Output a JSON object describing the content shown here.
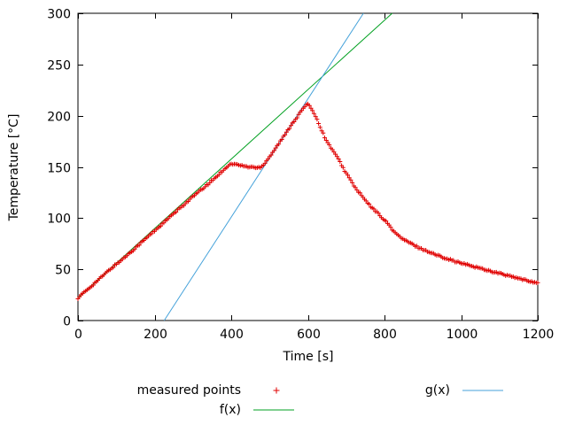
{
  "chart_data": {
    "type": "scatter",
    "title": "",
    "xlabel": "Time [s]",
    "ylabel": "Temperature [°C]",
    "xlim": [
      0,
      1200
    ],
    "ylim": [
      0,
      300
    ],
    "xticks": [
      0,
      200,
      400,
      600,
      800,
      1000,
      1200
    ],
    "yticks": [
      0,
      50,
      100,
      150,
      200,
      250,
      300
    ],
    "grid": false,
    "series": [
      {
        "name": "measured points",
        "type": "points",
        "marker": "plus",
        "color": "#e00000",
        "sample_interval_s": 4,
        "jitter_c": 0.8,
        "keyframes": [
          [
            0,
            22
          ],
          [
            30,
            32
          ],
          [
            60,
            42
          ],
          [
            90,
            52
          ],
          [
            120,
            61
          ],
          [
            150,
            71
          ],
          [
            180,
            81
          ],
          [
            210,
            91
          ],
          [
            240,
            101
          ],
          [
            270,
            111
          ],
          [
            300,
            121
          ],
          [
            330,
            130
          ],
          [
            360,
            140
          ],
          [
            385,
            149
          ],
          [
            395,
            152
          ],
          [
            405,
            153
          ],
          [
            418,
            152
          ],
          [
            430,
            151
          ],
          [
            442,
            150
          ],
          [
            455,
            150
          ],
          [
            468,
            149
          ],
          [
            478,
            150
          ],
          [
            488,
            154
          ],
          [
            500,
            160
          ],
          [
            515,
            168
          ],
          [
            530,
            176
          ],
          [
            545,
            184
          ],
          [
            560,
            193
          ],
          [
            575,
            200
          ],
          [
            585,
            206
          ],
          [
            595,
            210
          ],
          [
            602,
            211
          ],
          [
            610,
            207
          ],
          [
            618,
            201
          ],
          [
            628,
            193
          ],
          [
            638,
            184
          ],
          [
            648,
            176
          ],
          [
            656,
            171
          ],
          [
            664,
            167
          ],
          [
            672,
            162
          ],
          [
            682,
            156
          ],
          [
            695,
            147
          ],
          [
            710,
            138
          ],
          [
            725,
            129
          ],
          [
            740,
            122
          ],
          [
            755,
            115
          ],
          [
            770,
            109
          ],
          [
            785,
            104
          ],
          [
            800,
            98
          ],
          [
            810,
            94
          ],
          [
            820,
            89
          ],
          [
            830,
            85
          ],
          [
            842,
            81
          ],
          [
            855,
            78
          ],
          [
            870,
            75
          ],
          [
            890,
            71
          ],
          [
            910,
            68
          ],
          [
            935,
            64
          ],
          [
            960,
            61
          ],
          [
            990,
            57
          ],
          [
            1020,
            54
          ],
          [
            1050,
            51
          ],
          [
            1080,
            48
          ],
          [
            1110,
            45
          ],
          [
            1140,
            42
          ],
          [
            1170,
            39
          ],
          [
            1200,
            37
          ]
        ]
      },
      {
        "name": "f(x)",
        "type": "linear",
        "slope": 0.339,
        "intercept": 22,
        "color": "#00a020"
      },
      {
        "name": "g(x)",
        "type": "linear",
        "slope": 0.5769,
        "intercept": -129.8,
        "color": "#45a2da"
      }
    ],
    "legend": {
      "position": "below-plot",
      "items": [
        {
          "label": "measured points",
          "sample": "plus",
          "color": "#e00000"
        },
        {
          "label": "f(x)",
          "sample": "line",
          "color": "#00a020"
        },
        {
          "label": "g(x)",
          "sample": "line",
          "color": "#45a2da"
        }
      ]
    }
  }
}
